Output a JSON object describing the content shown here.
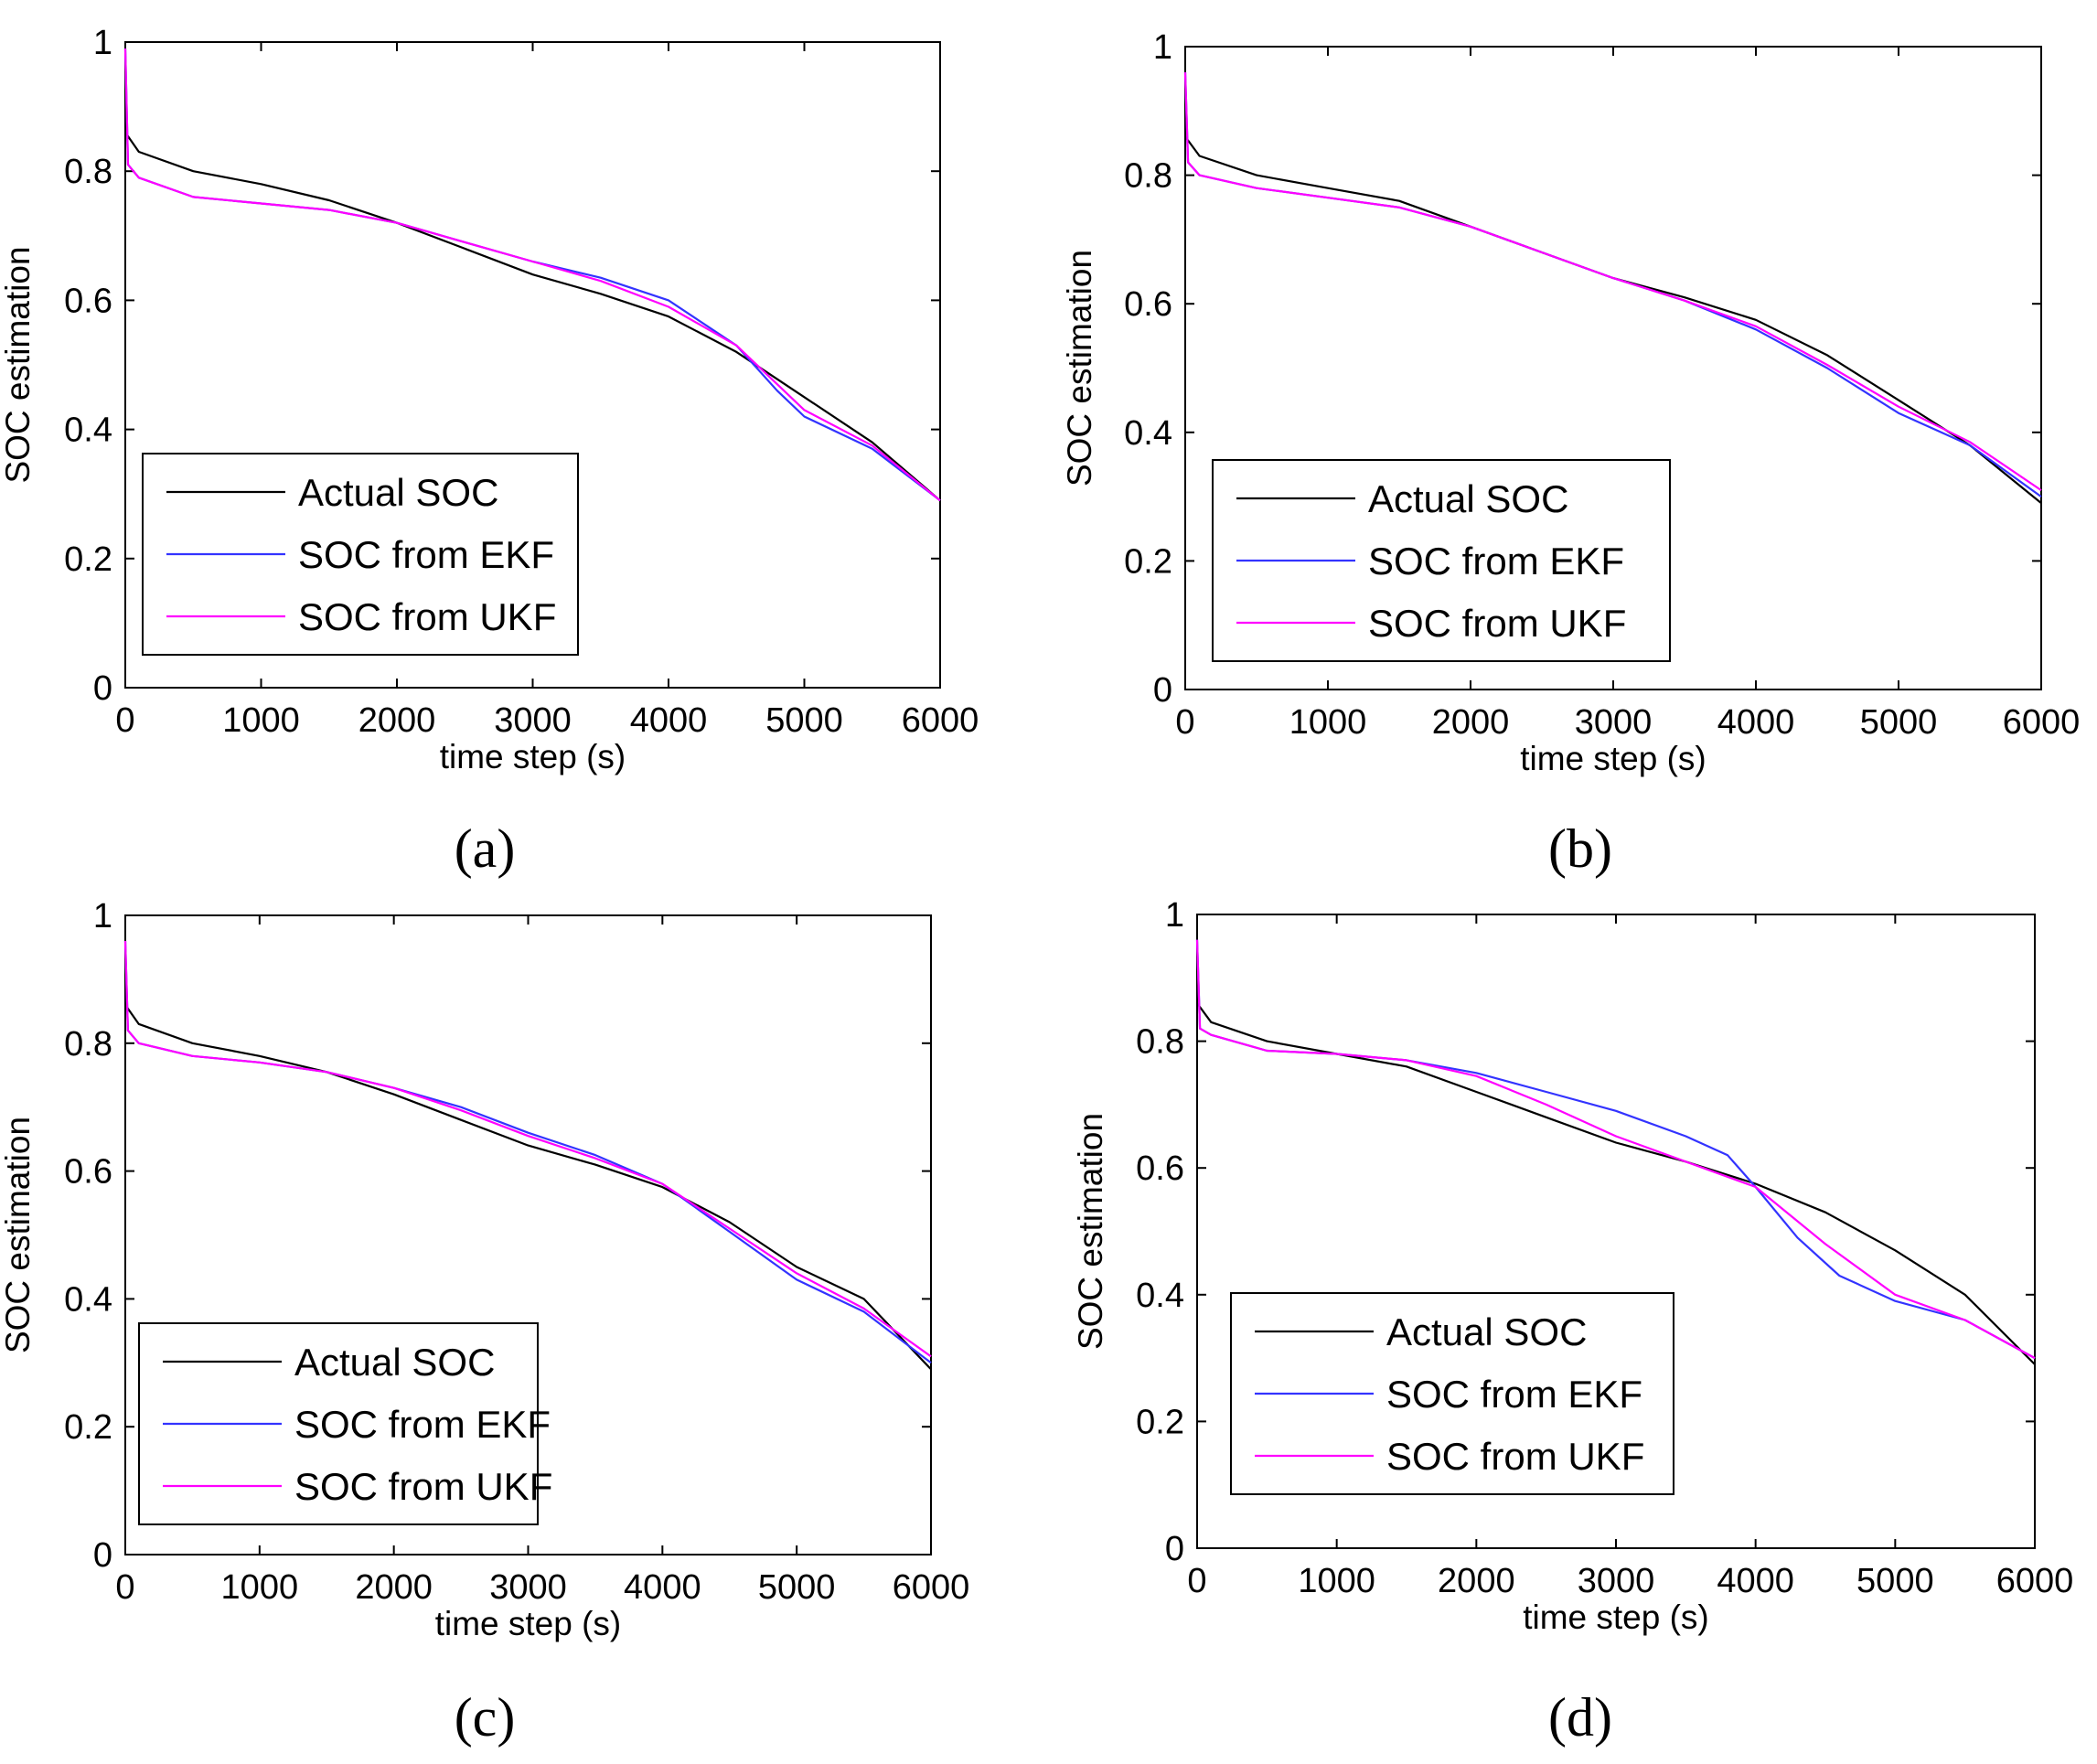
{
  "figure": {
    "panel_labels": [
      "(a)",
      "(b)",
      "(c)",
      "(d)"
    ]
  },
  "chart_data": [
    {
      "type": "line",
      "panel": "(a)",
      "xlabel": "time step (s)",
      "ylabel": "SOC estimation",
      "xlim": [
        0,
        6000
      ],
      "ylim": [
        0,
        1
      ],
      "xticks": [
        "0",
        "1000",
        "2000",
        "3000",
        "4000",
        "5000",
        "6000"
      ],
      "yticks": [
        "0",
        "0.2",
        "0.4",
        "0.6",
        "0.8",
        "1"
      ],
      "legend_position": "bottom-left",
      "series": [
        {
          "name": "Actual SOC",
          "color": "#000000",
          "x": [
            0,
            100,
            500,
            1000,
            1500,
            2000,
            2500,
            3000,
            3500,
            4000,
            4500,
            5000,
            5500,
            6000
          ],
          "y": [
            0.86,
            0.83,
            0.8,
            0.78,
            0.755,
            0.72,
            0.68,
            0.64,
            0.61,
            0.575,
            0.52,
            0.45,
            0.38,
            0.29
          ]
        },
        {
          "name": "SOC from EKF",
          "color": "#3333ff",
          "x": [
            0,
            20,
            100,
            500,
            1000,
            1500,
            2000,
            2500,
            3000,
            3500,
            4000,
            4500,
            4800,
            5000,
            5500,
            6000
          ],
          "y": [
            0.99,
            0.81,
            0.79,
            0.76,
            0.75,
            0.74,
            0.72,
            0.69,
            0.66,
            0.635,
            0.6,
            0.53,
            0.46,
            0.42,
            0.37,
            0.29
          ]
        },
        {
          "name": "SOC from UKF",
          "color": "#ff00ff",
          "x": [
            0,
            20,
            100,
            500,
            1000,
            1500,
            2000,
            2500,
            3000,
            3500,
            4000,
            4500,
            5000,
            5500,
            6000
          ],
          "y": [
            0.99,
            0.81,
            0.79,
            0.76,
            0.75,
            0.74,
            0.72,
            0.69,
            0.66,
            0.63,
            0.59,
            0.53,
            0.43,
            0.375,
            0.29
          ]
        }
      ]
    },
    {
      "type": "line",
      "panel": "(b)",
      "xlabel": "time step (s)",
      "ylabel": "SOC estimation",
      "xlim": [
        0,
        6000
      ],
      "ylim": [
        0,
        1
      ],
      "xticks": [
        "0",
        "1000",
        "2000",
        "3000",
        "4000",
        "5000",
        "6000"
      ],
      "yticks": [
        "0",
        "0.2",
        "0.4",
        "0.6",
        "0.8",
        "1"
      ],
      "legend_position": "bottom-left",
      "series": [
        {
          "name": "Actual SOC",
          "color": "#000000",
          "x": [
            0,
            100,
            500,
            1000,
            1500,
            2000,
            2500,
            3000,
            3500,
            4000,
            4500,
            5000,
            5500,
            6000
          ],
          "y": [
            0.86,
            0.83,
            0.8,
            0.78,
            0.76,
            0.72,
            0.68,
            0.64,
            0.61,
            0.575,
            0.52,
            0.45,
            0.38,
            0.29
          ]
        },
        {
          "name": "SOC from EKF",
          "color": "#3333ff",
          "x": [
            0,
            20,
            100,
            500,
            1000,
            1500,
            2000,
            2500,
            3000,
            3500,
            4000,
            4500,
            5000,
            5500,
            6000
          ],
          "y": [
            0.96,
            0.82,
            0.8,
            0.78,
            0.765,
            0.75,
            0.72,
            0.68,
            0.64,
            0.605,
            0.56,
            0.5,
            0.43,
            0.38,
            0.3
          ]
        },
        {
          "name": "SOC from UKF",
          "color": "#ff00ff",
          "x": [
            0,
            20,
            100,
            500,
            1000,
            1500,
            2000,
            2500,
            3000,
            3500,
            4000,
            4500,
            5000,
            5500,
            6000
          ],
          "y": [
            0.96,
            0.82,
            0.8,
            0.78,
            0.765,
            0.75,
            0.72,
            0.68,
            0.64,
            0.605,
            0.565,
            0.505,
            0.44,
            0.385,
            0.31
          ]
        }
      ]
    },
    {
      "type": "line",
      "panel": "(c)",
      "xlabel": "time step (s)",
      "ylabel": "SOC estimation",
      "xlim": [
        0,
        6000
      ],
      "ylim": [
        0,
        1
      ],
      "xticks": [
        "0",
        "1000",
        "2000",
        "3000",
        "4000",
        "5000",
        "6000"
      ],
      "yticks": [
        "0",
        "0.2",
        "0.4",
        "0.6",
        "0.8",
        "1"
      ],
      "legend_position": "bottom-left",
      "series": [
        {
          "name": "Actual SOC",
          "color": "#000000",
          "x": [
            0,
            100,
            500,
            1000,
            1500,
            2000,
            2500,
            3000,
            3500,
            4000,
            4500,
            5000,
            5500,
            6000
          ],
          "y": [
            0.86,
            0.83,
            0.8,
            0.78,
            0.755,
            0.72,
            0.68,
            0.64,
            0.61,
            0.575,
            0.52,
            0.45,
            0.4,
            0.29
          ]
        },
        {
          "name": "SOC from EKF",
          "color": "#3333ff",
          "x": [
            0,
            20,
            100,
            500,
            1000,
            1500,
            2000,
            2500,
            3000,
            3500,
            4000,
            4500,
            5000,
            5500,
            6000
          ],
          "y": [
            0.96,
            0.82,
            0.8,
            0.78,
            0.77,
            0.755,
            0.73,
            0.7,
            0.66,
            0.625,
            0.58,
            0.505,
            0.43,
            0.38,
            0.3
          ]
        },
        {
          "name": "SOC from UKF",
          "color": "#ff00ff",
          "x": [
            0,
            20,
            100,
            500,
            1000,
            1500,
            2000,
            2500,
            3000,
            3500,
            4000,
            4500,
            5000,
            5500,
            6000
          ],
          "y": [
            0.96,
            0.82,
            0.8,
            0.78,
            0.77,
            0.755,
            0.73,
            0.695,
            0.655,
            0.62,
            0.58,
            0.51,
            0.44,
            0.385,
            0.31
          ]
        }
      ]
    },
    {
      "type": "line",
      "panel": "(d)",
      "xlabel": "time step (s)",
      "ylabel": "SOC estimation",
      "xlim": [
        0,
        6000
      ],
      "ylim": [
        0,
        1
      ],
      "xticks": [
        "0",
        "1000",
        "2000",
        "3000",
        "4000",
        "5000",
        "6000"
      ],
      "yticks": [
        "0",
        "0.2",
        "0.4",
        "0.6",
        "0.8",
        "1"
      ],
      "legend_position": "bottom-left",
      "series": [
        {
          "name": "Actual SOC",
          "color": "#000000",
          "x": [
            0,
            100,
            500,
            1000,
            1500,
            2000,
            2500,
            3000,
            3500,
            4000,
            4500,
            5000,
            5500,
            6000
          ],
          "y": [
            0.86,
            0.83,
            0.8,
            0.78,
            0.76,
            0.72,
            0.68,
            0.64,
            0.61,
            0.575,
            0.53,
            0.47,
            0.4,
            0.29
          ]
        },
        {
          "name": "SOC from EKF",
          "color": "#3333ff",
          "x": [
            0,
            20,
            100,
            500,
            1000,
            1500,
            2000,
            2500,
            3000,
            3500,
            3800,
            4000,
            4300,
            4600,
            5000,
            5500,
            6000
          ],
          "y": [
            0.96,
            0.82,
            0.81,
            0.785,
            0.78,
            0.77,
            0.75,
            0.72,
            0.69,
            0.65,
            0.62,
            0.57,
            0.49,
            0.43,
            0.39,
            0.36,
            0.3
          ]
        },
        {
          "name": "SOC from UKF",
          "color": "#ff00ff",
          "x": [
            0,
            20,
            100,
            500,
            1000,
            1500,
            2000,
            2500,
            3000,
            3500,
            4000,
            4500,
            5000,
            5500,
            6000
          ],
          "y": [
            0.96,
            0.82,
            0.81,
            0.785,
            0.78,
            0.77,
            0.745,
            0.7,
            0.65,
            0.61,
            0.57,
            0.48,
            0.4,
            0.36,
            0.3
          ]
        }
      ]
    }
  ]
}
